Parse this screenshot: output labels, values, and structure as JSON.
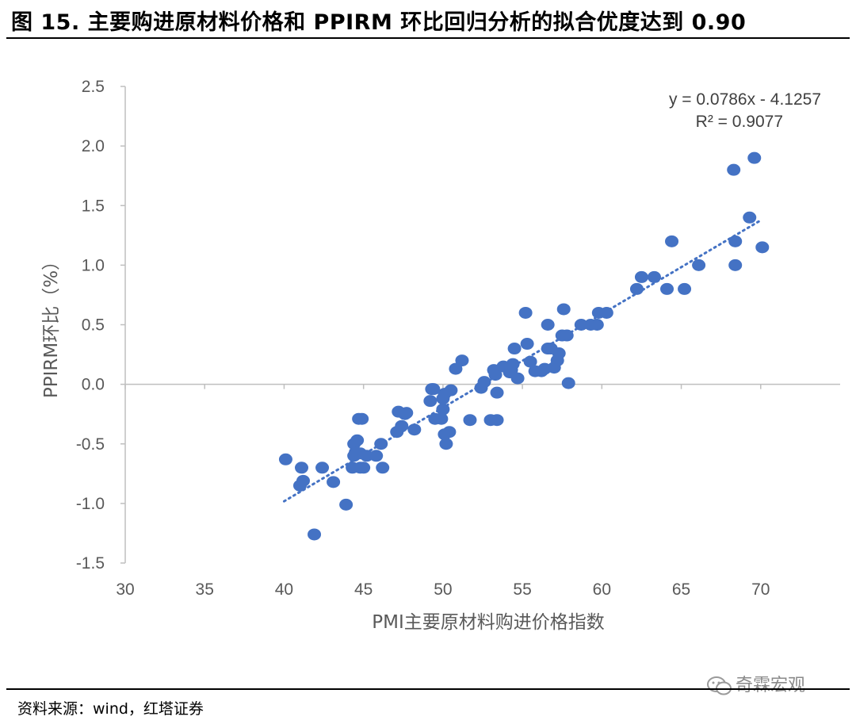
{
  "header": {
    "title": "图 15. 主要购进原材料价格和 PPIRM 环比回归分析的拟合优度达到 0.90"
  },
  "footer": {
    "source": "资料来源：wind，红塔证券",
    "watermark": "奇霖宏观"
  },
  "colors": {
    "point": "#4472C4",
    "trend": "#4472C4",
    "axis": "#bfbfbf",
    "text": "#595959"
  },
  "chart_data": {
    "type": "scatter",
    "title": "",
    "xlabel": "PMI主要原材料购进价格指数",
    "ylabel": "PPIRM环比（%）",
    "xlim": [
      30,
      75
    ],
    "ylim": [
      -1.5,
      2.5
    ],
    "xticks": [
      "30",
      "35",
      "40",
      "45",
      "50",
      "55",
      "60",
      "65",
      "70"
    ],
    "yticks": [
      "2.5",
      "2.0",
      "1.5",
      "1.0",
      "0.5",
      "0.0",
      "-0.5",
      "-1.0",
      "-1.5"
    ],
    "grid": false,
    "legend": "none",
    "trendline": {
      "slope": 0.0786,
      "intercept": -4.1257,
      "x_range": [
        40.0,
        70.0
      ],
      "style": "dotted"
    },
    "equation_label": "y = 0.0786x - 4.1257",
    "r2_label": "R² = 0.9077",
    "points": [
      [
        40.1,
        -0.63
      ],
      [
        41.0,
        -0.85
      ],
      [
        41.1,
        -0.7
      ],
      [
        41.2,
        -0.81
      ],
      [
        41.9,
        -1.26
      ],
      [
        42.4,
        -0.7
      ],
      [
        43.1,
        -0.82
      ],
      [
        43.9,
        -1.01
      ],
      [
        44.3,
        -0.7
      ],
      [
        44.4,
        -0.6
      ],
      [
        44.4,
        -0.5
      ],
      [
        44.6,
        -0.47
      ],
      [
        44.5,
        -0.57
      ],
      [
        44.7,
        -0.29
      ],
      [
        44.9,
        -0.29
      ],
      [
        44.8,
        -0.58
      ],
      [
        45.0,
        -0.7
      ],
      [
        44.8,
        -0.7
      ],
      [
        45.2,
        -0.6
      ],
      [
        45.8,
        -0.6
      ],
      [
        46.1,
        -0.5
      ],
      [
        46.2,
        -0.7
      ],
      [
        47.1,
        -0.4
      ],
      [
        47.2,
        -0.23
      ],
      [
        47.4,
        -0.35
      ],
      [
        47.7,
        -0.24
      ],
      [
        47.6,
        -0.25
      ],
      [
        48.2,
        -0.38
      ],
      [
        49.2,
        -0.14
      ],
      [
        49.3,
        -0.04
      ],
      [
        49.5,
        -0.29
      ],
      [
        49.4,
        -0.04
      ],
      [
        49.9,
        -0.29
      ],
      [
        50.0,
        -0.12
      ],
      [
        50.0,
        -0.21
      ],
      [
        50.1,
        -0.42
      ],
      [
        50.2,
        -0.5
      ],
      [
        50.4,
        -0.4
      ],
      [
        50.5,
        -0.05
      ],
      [
        50.1,
        -0.08
      ],
      [
        50.8,
        0.13
      ],
      [
        51.2,
        0.2
      ],
      [
        51.7,
        -0.3
      ],
      [
        52.4,
        -0.03
      ],
      [
        52.6,
        0.02
      ],
      [
        53.0,
        -0.3
      ],
      [
        53.2,
        0.12
      ],
      [
        53.3,
        0.08
      ],
      [
        53.4,
        -0.07
      ],
      [
        53.4,
        -0.3
      ],
      [
        53.8,
        0.15
      ],
      [
        54.2,
        0.1
      ],
      [
        54.3,
        0.12
      ],
      [
        54.4,
        0.17
      ],
      [
        54.5,
        0.3
      ],
      [
        54.7,
        0.05
      ],
      [
        55.2,
        0.6
      ],
      [
        55.3,
        0.34
      ],
      [
        55.5,
        0.19
      ],
      [
        55.8,
        0.11
      ],
      [
        56.2,
        0.11
      ],
      [
        56.4,
        0.13
      ],
      [
        56.6,
        0.3
      ],
      [
        56.6,
        0.5
      ],
      [
        56.8,
        0.3
      ],
      [
        57.0,
        0.14
      ],
      [
        57.2,
        0.2
      ],
      [
        57.3,
        0.26
      ],
      [
        57.5,
        0.41
      ],
      [
        57.6,
        0.63
      ],
      [
        57.8,
        0.41
      ],
      [
        57.9,
        0.01
      ],
      [
        58.7,
        0.5
      ],
      [
        59.3,
        0.5
      ],
      [
        59.8,
        0.6
      ],
      [
        59.7,
        0.5
      ],
      [
        60.3,
        0.6
      ],
      [
        62.2,
        0.8
      ],
      [
        62.5,
        0.9
      ],
      [
        63.3,
        0.9
      ],
      [
        64.1,
        0.8
      ],
      [
        64.4,
        1.2
      ],
      [
        65.2,
        0.8
      ],
      [
        66.1,
        1.0
      ],
      [
        68.3,
        1.8
      ],
      [
        68.4,
        1.0
      ],
      [
        68.4,
        1.2
      ],
      [
        69.3,
        1.4
      ],
      [
        69.6,
        1.9
      ],
      [
        70.1,
        1.15
      ]
    ]
  }
}
